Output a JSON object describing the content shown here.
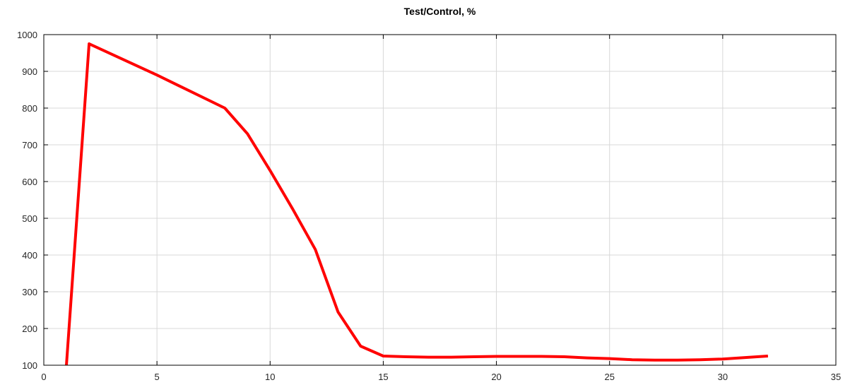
{
  "chart_data": {
    "type": "line",
    "title": "Test/Control, %",
    "xlabel": "",
    "ylabel": "",
    "xlim": [
      0,
      35
    ],
    "ylim": [
      100,
      1000
    ],
    "x_ticks": [
      0,
      5,
      10,
      15,
      20,
      25,
      30,
      35
    ],
    "y_ticks": [
      100,
      200,
      300,
      400,
      500,
      600,
      700,
      800,
      900,
      1000
    ],
    "grid": true,
    "legend": "none",
    "series": [
      {
        "color": "#ff0000",
        "x": [
          1,
          2,
          5,
          8,
          9,
          10,
          11,
          12,
          13,
          14,
          15,
          16,
          17,
          18,
          19,
          20,
          21,
          22,
          23,
          24,
          25,
          26,
          27,
          28,
          29,
          30,
          31,
          32
        ],
        "y": [
          100,
          975,
          890,
          800,
          730,
          630,
          525,
          415,
          245,
          152,
          125,
          123,
          122,
          122,
          123,
          124,
          124,
          124,
          123,
          120,
          118,
          115,
          114,
          114,
          115,
          117,
          121,
          125
        ]
      }
    ]
  }
}
